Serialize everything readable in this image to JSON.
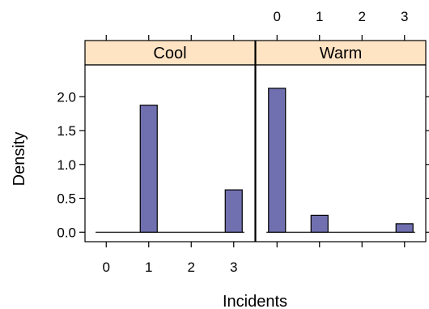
{
  "chart_data": {
    "type": "bar",
    "xlabel": "Incidents",
    "ylabel": "Density",
    "ylim": [
      -0.14,
      2.47
    ],
    "yticks": [
      0.0,
      0.5,
      1.0,
      1.5,
      2.0
    ],
    "ytick_labels": [
      "0.0",
      "0.5",
      "1.0",
      "1.5",
      "2.0"
    ],
    "xlim": [
      -0.5,
      3.5
    ],
    "xticks": [
      0,
      1,
      2,
      3
    ],
    "xtick_labels": [
      "0",
      "1",
      "2",
      "3"
    ],
    "bar_width": 0.4,
    "colors": {
      "bar_fill": "#7070B0",
      "strip_fill": "#FFE4C4",
      "frame": "#000000"
    },
    "panels": [
      {
        "strip": "Cool",
        "bars": [
          {
            "x": 0,
            "value": 0.0
          },
          {
            "x": 1,
            "value": 1.875
          },
          {
            "x": 2,
            "value": 0.0
          },
          {
            "x": 3,
            "value": 0.625
          }
        ]
      },
      {
        "strip": "Warm",
        "bars": [
          {
            "x": 0,
            "value": 2.125
          },
          {
            "x": 1,
            "value": 0.25
          },
          {
            "x": 2,
            "value": 0.0
          },
          {
            "x": 3,
            "value": 0.125
          }
        ]
      }
    ]
  }
}
